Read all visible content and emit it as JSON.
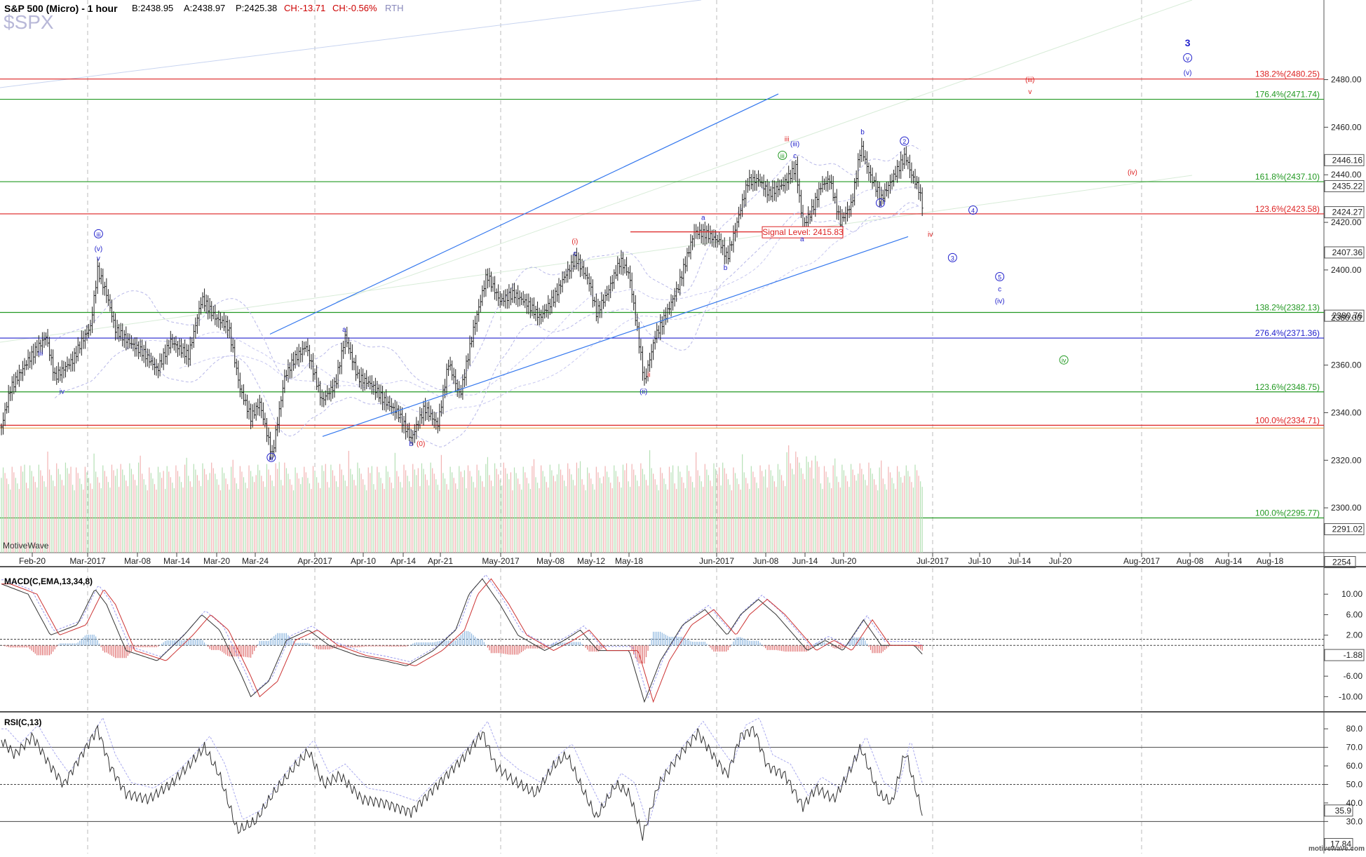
{
  "header": {
    "title": "S&P 500 (Micro) - 1 hour",
    "bid": "B:2438.95",
    "ask": "A:2438.97",
    "price": "P:2425.38",
    "change": "CH:-13.71",
    "change_pct": "CH:-0.56%",
    "session": "RTH",
    "symbol": "$SPX"
  },
  "brand": {
    "label": "MotiveWave",
    "footer": "motivewave.com"
  },
  "chart_data": [
    {
      "type": "candlestick",
      "title": "S&P 500 (Micro) - 1 hour",
      "ylim": [
        2285,
        2512
      ],
      "y_ticks": [
        "2480.00",
        "2460.00",
        "2440.00",
        "2420.00",
        "2400.00",
        "2380.00",
        "2360.00",
        "2340.00",
        "2320.00",
        "2300.00"
      ],
      "x_ticks": [
        "Feb-20",
        "Mar-2017",
        "Mar-08",
        "Mar-14",
        "Mar-20",
        "Mar-24",
        "Apr-2017",
        "Apr-10",
        "Apr-14",
        "Apr-21",
        "May-2017",
        "May-08",
        "May-12",
        "May-18",
        "Jun-2017",
        "Jun-08",
        "Jun-14",
        "Jun-20",
        "Jul-2017",
        "Jul-10",
        "Jul-14",
        "Jul-20",
        "Aug-2017",
        "Aug-08",
        "Aug-14",
        "Aug-18"
      ],
      "price_pivots": [
        [
          0,
          2334
        ],
        [
          10,
          2350
        ],
        [
          30,
          2362
        ],
        [
          50,
          2372
        ],
        [
          60,
          2355
        ],
        [
          80,
          2362
        ],
        [
          90,
          2370
        ],
        [
          100,
          2376
        ],
        [
          108,
          2400
        ],
        [
          118,
          2390
        ],
        [
          128,
          2375
        ],
        [
          142,
          2370
        ],
        [
          160,
          2365
        ],
        [
          175,
          2358
        ],
        [
          190,
          2370
        ],
        [
          210,
          2364
        ],
        [
          225,
          2388
        ],
        [
          240,
          2380
        ],
        [
          255,
          2376
        ],
        [
          268,
          2350
        ],
        [
          280,
          2338
        ],
        [
          290,
          2344
        ],
        [
          304,
          2322
        ],
        [
          318,
          2355
        ],
        [
          328,
          2362
        ],
        [
          342,
          2368
        ],
        [
          360,
          2345
        ],
        [
          375,
          2352
        ],
        [
          386,
          2372
        ],
        [
          400,
          2355
        ],
        [
          415,
          2352
        ],
        [
          430,
          2345
        ],
        [
          445,
          2340
        ],
        [
          460,
          2329
        ],
        [
          475,
          2342
        ],
        [
          490,
          2335
        ],
        [
          502,
          2361
        ],
        [
          515,
          2347
        ],
        [
          530,
          2375
        ],
        [
          545,
          2398
        ],
        [
          560,
          2387
        ],
        [
          575,
          2390
        ],
        [
          590,
          2386
        ],
        [
          605,
          2380
        ],
        [
          620,
          2388
        ],
        [
          632,
          2397
        ],
        [
          645,
          2405
        ],
        [
          660,
          2395
        ],
        [
          668,
          2382
        ],
        [
          680,
          2390
        ],
        [
          695,
          2404
        ],
        [
          705,
          2398
        ],
        [
          712,
          2380
        ],
        [
          722,
          2353
        ],
        [
          734,
          2372
        ],
        [
          745,
          2380
        ],
        [
          760,
          2393
        ],
        [
          778,
          2416
        ],
        [
          792,
          2415
        ],
        [
          806,
          2412
        ],
        [
          815,
          2405
        ],
        [
          826,
          2420
        ],
        [
          838,
          2437
        ],
        [
          850,
          2438
        ],
        [
          862,
          2432
        ],
        [
          878,
          2436
        ],
        [
          892,
          2443
        ],
        [
          900,
          2418
        ],
        [
          910,
          2425
        ],
        [
          920,
          2435
        ],
        [
          930,
          2438
        ],
        [
          942,
          2420
        ],
        [
          955,
          2428
        ],
        [
          965,
          2452
        ],
        [
          975,
          2440
        ],
        [
          988,
          2430
        ],
        [
          1000,
          2438
        ],
        [
          1015,
          2448
        ],
        [
          1022,
          2440
        ],
        [
          1030,
          2434
        ],
        [
          1035,
          2426
        ]
      ],
      "volume_max": 2320,
      "volume_axis_label": "2254",
      "horizontal_levels": [
        {
          "label": "138.2%(2480.25)",
          "value": 2480.25,
          "color": "#dd2222"
        },
        {
          "label": "176.4%(2471.74)",
          "value": 2471.74,
          "color": "#229922"
        },
        {
          "label": "161.8%(2437.10)",
          "value": 2437.1,
          "color": "#229922"
        },
        {
          "label": "123.6%(2423.58)",
          "value": 2423.58,
          "color": "#dd2222"
        },
        {
          "label": "138.2%(2382.13)",
          "value": 2382.13,
          "color": "#229922"
        },
        {
          "label": "276.4%(2371.36)",
          "value": 2371.36,
          "color": "#2222cc"
        },
        {
          "label": "123.6%(2348.75)",
          "value": 2348.75,
          "color": "#229922"
        },
        {
          "label": "100.0%(2334.71)",
          "value": 2334.71,
          "color": "#dd2222"
        },
        {
          "label": "100.0%(2295.77)",
          "value": 2295.77,
          "color": "#229922"
        }
      ],
      "price_badges": [
        {
          "text": "2446.16",
          "value": 2446.16
        },
        {
          "text": "2435.22",
          "value": 2435.22
        },
        {
          "text": "2424.27",
          "value": 2424.27
        },
        {
          "text": "2407.36",
          "value": 2407.36
        },
        {
          "text": "2380.76",
          "value": 2380.76
        },
        {
          "text": "2291.02",
          "value": 2291.02
        }
      ],
      "signal_level": {
        "text": "Signal Level: 2415.83",
        "value": 2415.83
      },
      "wave_labels": [
        {
          "text": "iii",
          "x": 44,
          "y": 2364,
          "color": "#2222cc"
        },
        {
          "text": "iv",
          "x": 68,
          "y": 2348,
          "color": "#2222cc"
        },
        {
          "text": "iii",
          "x": 109,
          "y": 2414,
          "color": "#2222cc",
          "circle": true
        },
        {
          "text": "(v)",
          "x": 109,
          "y": 2408,
          "color": "#2222cc"
        },
        {
          "text": "v",
          "x": 109,
          "y": 2404,
          "color": "#2222cc"
        },
        {
          "text": "iv",
          "x": 303,
          "y": 2320,
          "color": "#2222cc",
          "circle": true
        },
        {
          "text": "a",
          "x": 385,
          "y": 2374,
          "color": "#2222cc"
        },
        {
          "text": "b",
          "x": 460,
          "y": 2326,
          "color": "#2222cc"
        },
        {
          "text": "(0)",
          "x": 471,
          "y": 2326,
          "color": "#dd2222"
        },
        {
          "text": "(i)",
          "x": 644,
          "y": 2411,
          "color": "#dd2222"
        },
        {
          "text": "c",
          "x": 644,
          "y": 2406,
          "color": "#2222cc"
        },
        {
          "text": "ii",
          "x": 727,
          "y": 2355,
          "color": "#dd2222"
        },
        {
          "text": "(ii)",
          "x": 721,
          "y": 2348,
          "color": "#2222cc"
        },
        {
          "text": "a",
          "x": 788,
          "y": 2421,
          "color": "#2222cc"
        },
        {
          "text": "b",
          "x": 813,
          "y": 2400,
          "color": "#2222cc"
        },
        {
          "text": "iii",
          "x": 882,
          "y": 2454,
          "color": "#dd2222"
        },
        {
          "text": "(iii)",
          "x": 891,
          "y": 2452,
          "color": "#2222cc"
        },
        {
          "text": "iii",
          "x": 877,
          "y": 2447,
          "color": "#229922",
          "circle": true
        },
        {
          "text": "c",
          "x": 891,
          "y": 2447,
          "color": "#2222cc"
        },
        {
          "text": "a",
          "x": 899,
          "y": 2412,
          "color": "#2222cc"
        },
        {
          "text": "b",
          "x": 967,
          "y": 2457,
          "color": "#2222cc"
        },
        {
          "text": "1",
          "x": 987,
          "y": 2427,
          "color": "#2222cc",
          "circle": true
        },
        {
          "text": "2",
          "x": 1014,
          "y": 2453,
          "color": "#2222cc",
          "circle": true
        },
        {
          "text": "4",
          "x": 1091,
          "y": 2424,
          "color": "#2222cc",
          "circle": true
        },
        {
          "text": "iv",
          "x": 1043,
          "y": 2414,
          "color": "#dd2222"
        },
        {
          "text": "3",
          "x": 1068,
          "y": 2404,
          "color": "#2222cc",
          "circle": true
        },
        {
          "text": "5",
          "x": 1121,
          "y": 2396,
          "color": "#2222cc",
          "circle": true
        },
        {
          "text": "c",
          "x": 1121,
          "y": 2391,
          "color": "#2222cc"
        },
        {
          "text": "(iv)",
          "x": 1121,
          "y": 2386,
          "color": "#2222cc"
        },
        {
          "text": "(iii)",
          "x": 1155,
          "y": 2479,
          "color": "#dd2222"
        },
        {
          "text": "v",
          "x": 1155,
          "y": 2474,
          "color": "#dd2222"
        },
        {
          "text": "(iv)",
          "x": 1270,
          "y": 2440,
          "color": "#dd2222"
        },
        {
          "text": "iv",
          "x": 1193,
          "y": 2361,
          "color": "#229922",
          "circle": true
        },
        {
          "text": "3",
          "x": 1332,
          "y": 2494,
          "color": "#2222cc",
          "bold": true
        },
        {
          "text": "v",
          "x": 1332,
          "y": 2488,
          "color": "#2222cc",
          "circle": true
        },
        {
          "text": "(v)",
          "x": 1332,
          "y": 2482,
          "color": "#2222cc"
        }
      ]
    },
    {
      "type": "line",
      "title": "MACD(C,EMA,13,34,8)",
      "ylim": [
        -12,
        14
      ],
      "y_ticks": [
        "10.00",
        "6.00",
        "2.00",
        "-6.00",
        "-10.00"
      ],
      "value_badge": "-1.88",
      "series_pivots": [
        [
          0,
          12
        ],
        [
          30,
          10
        ],
        [
          55,
          2
        ],
        [
          85,
          4
        ],
        [
          105,
          11
        ],
        [
          118,
          8
        ],
        [
          140,
          -1
        ],
        [
          175,
          -3
        ],
        [
          205,
          2
        ],
        [
          225,
          6
        ],
        [
          245,
          3
        ],
        [
          270,
          -6
        ],
        [
          280,
          -10
        ],
        [
          300,
          -7
        ],
        [
          320,
          1
        ],
        [
          345,
          3
        ],
        [
          368,
          0
        ],
        [
          400,
          -2
        ],
        [
          430,
          -3
        ],
        [
          455,
          -4
        ],
        [
          485,
          -1
        ],
        [
          510,
          3
        ],
        [
          525,
          10
        ],
        [
          540,
          13
        ],
        [
          560,
          8
        ],
        [
          580,
          2
        ],
        [
          610,
          -1
        ],
        [
          632,
          1
        ],
        [
          650,
          3
        ],
        [
          670,
          -1
        ],
        [
          705,
          -1
        ],
        [
          722,
          -11
        ],
        [
          740,
          -3
        ],
        [
          765,
          4
        ],
        [
          790,
          7
        ],
        [
          815,
          2
        ],
        [
          830,
          6
        ],
        [
          850,
          9
        ],
        [
          870,
          6
        ],
        [
          890,
          2
        ],
        [
          905,
          -1
        ],
        [
          925,
          1
        ],
        [
          945,
          -1
        ],
        [
          968,
          5
        ],
        [
          988,
          0
        ],
        [
          1010,
          0
        ],
        [
          1025,
          0
        ],
        [
          1035,
          -1.88
        ]
      ]
    },
    {
      "type": "line",
      "title": "RSI(C,13)",
      "ylim": [
        15,
        85
      ],
      "y_ticks": [
        "80.0",
        "70.0",
        "60.0",
        "50.0",
        "40.0",
        "30.0"
      ],
      "reference_lines": [
        70,
        50,
        30
      ],
      "value_badges": [
        "35.9",
        "17.84"
      ],
      "series_pivots": [
        [
          0,
          74
        ],
        [
          15,
          66
        ],
        [
          35,
          76
        ],
        [
          55,
          60
        ],
        [
          70,
          50
        ],
        [
          90,
          66
        ],
        [
          108,
          80
        ],
        [
          122,
          60
        ],
        [
          140,
          45
        ],
        [
          165,
          42
        ],
        [
          190,
          50
        ],
        [
          210,
          60
        ],
        [
          228,
          70
        ],
        [
          245,
          55
        ],
        [
          265,
          25
        ],
        [
          285,
          30
        ],
        [
          305,
          45
        ],
        [
          330,
          60
        ],
        [
          345,
          68
        ],
        [
          362,
          50
        ],
        [
          380,
          55
        ],
        [
          405,
          42
        ],
        [
          430,
          40
        ],
        [
          460,
          35
        ],
        [
          480,
          45
        ],
        [
          500,
          55
        ],
        [
          520,
          65
        ],
        [
          540,
          78
        ],
        [
          555,
          60
        ],
        [
          575,
          52
        ],
        [
          600,
          45
        ],
        [
          620,
          60
        ],
        [
          635,
          66
        ],
        [
          650,
          50
        ],
        [
          668,
          32
        ],
        [
          690,
          50
        ],
        [
          705,
          45
        ],
        [
          720,
          22
        ],
        [
          738,
          50
        ],
        [
          760,
          65
        ],
        [
          782,
          78
        ],
        [
          800,
          65
        ],
        [
          815,
          55
        ],
        [
          830,
          76
        ],
        [
          845,
          80
        ],
        [
          860,
          60
        ],
        [
          880,
          55
        ],
        [
          900,
          38
        ],
        [
          915,
          48
        ],
        [
          935,
          42
        ],
        [
          950,
          55
        ],
        [
          965,
          70
        ],
        [
          985,
          45
        ],
        [
          1000,
          40
        ],
        [
          1015,
          68
        ],
        [
          1025,
          50
        ],
        [
          1035,
          33
        ]
      ]
    }
  ]
}
